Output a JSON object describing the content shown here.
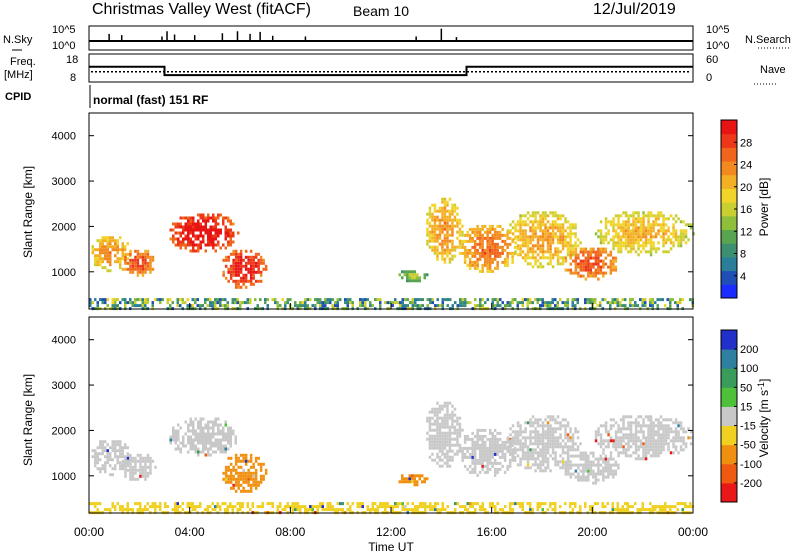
{
  "header": {
    "station": "Christmas Valley West (fitACF)",
    "beam": "Beam 10",
    "date": "12/Jul/2019"
  },
  "noise_panel": {
    "left_label": "N.Sky",
    "right_label": "N.Search",
    "left_ticks": [
      "10^5",
      "10^0"
    ],
    "right_ticks": [
      "10^5",
      "10^0"
    ],
    "spikes": [
      {
        "x": 0.8,
        "level": 0.55
      },
      {
        "x": 1.3,
        "level": 0.45
      },
      {
        "x": 2.9,
        "level": 0.35
      },
      {
        "x": 3.1,
        "level": 0.75
      },
      {
        "x": 3.4,
        "level": 0.5
      },
      {
        "x": 4.2,
        "level": 0.45
      },
      {
        "x": 5.3,
        "level": 0.6
      },
      {
        "x": 5.9,
        "level": 0.75
      },
      {
        "x": 6.4,
        "level": 0.55
      },
      {
        "x": 6.8,
        "level": 0.7
      },
      {
        "x": 7.3,
        "level": 0.4
      },
      {
        "x": 8.6,
        "level": 0.35
      },
      {
        "x": 13.0,
        "level": 0.35
      },
      {
        "x": 14.0,
        "level": 0.95
      },
      {
        "x": 14.6,
        "level": 0.3
      }
    ]
  },
  "freq_panel": {
    "left_label": "Freq. [MHz]",
    "right_label": "Nave",
    "left_ticks": [
      "18",
      "8"
    ],
    "right_ticks": [
      "60",
      "0"
    ],
    "freq_steps": [
      {
        "t0": 0.0,
        "t1": 3.0,
        "mhz": 14.0
      },
      {
        "t0": 3.0,
        "t1": 15.0,
        "mhz": 10.2
      },
      {
        "t0": 15.0,
        "t1": 24.0,
        "mhz": 14.0
      }
    ],
    "nave_level": 0.48
  },
  "cpid": {
    "label": "CPID",
    "mode": "normal (fast) 151 RF"
  },
  "axes": {
    "x_ticks": [
      "00:00",
      "04:00",
      "08:00",
      "12:00",
      "16:00",
      "20:00",
      "00:00"
    ],
    "xlabel": "Time UT",
    "y_ticks": [
      "1000",
      "2000",
      "3000",
      "4000"
    ],
    "ylabel": "Slant Range [km]"
  },
  "power_colorbar": {
    "label": "Power [dB]",
    "ticks": [
      "4",
      "8",
      "12",
      "16",
      "20",
      "24",
      "28"
    ],
    "colors": [
      "#1a2cff",
      "#1f4fb5",
      "#2a7e9a",
      "#3d8f72",
      "#58a44f",
      "#8fbf3a",
      "#c9cf30",
      "#f0d42a",
      "#f3b025",
      "#f28a20",
      "#f0641c",
      "#ec3818",
      "#e81414"
    ]
  },
  "velocity_colorbar": {
    "label": "Velocity [m s^-1]",
    "ticks": [
      "200",
      "100",
      "50",
      "15",
      "-15",
      "-50",
      "-100",
      "-200"
    ],
    "colors": [
      "#2030c8",
      "#2f7fa0",
      "#3a9c5a",
      "#4fc03a",
      "#c8c8c8",
      "#f0d020",
      "#f09010",
      "#f05a10",
      "#e81818"
    ]
  },
  "chart_data": {
    "type": "heatmap",
    "title": "Christmas Valley West (fitACF) Beam 10 12/Jul/2019",
    "xlabel": "Time UT",
    "ylabel": "Slant Range [km]",
    "xlim": [
      0,
      24
    ],
    "ylim": [
      180,
      4500
    ],
    "x_units": "hours UT",
    "regions": [
      {
        "t0": 0.0,
        "t1": 1.6,
        "r0": 1050,
        "r1": 1850,
        "power": 18,
        "velocity": 0
      },
      {
        "t0": 1.2,
        "t1": 2.6,
        "r0": 900,
        "r1": 1550,
        "power": 22,
        "velocity": 0
      },
      {
        "t0": 3.1,
        "t1": 5.9,
        "r0": 1450,
        "r1": 2350,
        "power": 26,
        "velocity": 0
      },
      {
        "t0": 5.2,
        "t1": 7.0,
        "r0": 650,
        "r1": 1550,
        "power": 25,
        "velocity": -90
      },
      {
        "t0": 12.2,
        "t1": 13.4,
        "r0": 800,
        "r1": 1100,
        "power": 10,
        "velocity": -60
      },
      {
        "t0": 13.3,
        "t1": 14.8,
        "r0": 1200,
        "r1": 2700,
        "power": 18,
        "velocity": 0
      },
      {
        "t0": 14.6,
        "t1": 17.0,
        "r0": 1000,
        "r1": 2100,
        "power": 20,
        "velocity": 0
      },
      {
        "t0": 16.5,
        "t1": 19.5,
        "r0": 1100,
        "r1": 2400,
        "power": 17,
        "velocity": 0
      },
      {
        "t0": 18.8,
        "t1": 21.0,
        "r0": 850,
        "r1": 1600,
        "power": 22,
        "velocity": 0
      },
      {
        "t0": 20.0,
        "t1": 24.0,
        "r0": 1400,
        "r1": 2400,
        "power": 16,
        "velocity": 0
      },
      {
        "t0": 0.0,
        "t1": 24.0,
        "r0": 180,
        "r1": 420,
        "power": 8,
        "velocity": -30
      }
    ]
  }
}
